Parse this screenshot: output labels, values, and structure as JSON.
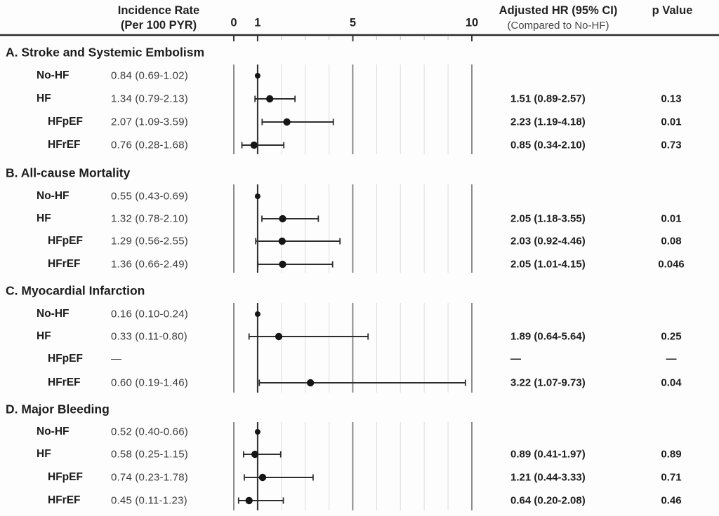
{
  "header": {
    "incidence_label": "Incidence Rate",
    "incidence_sublabel": "(Per 100 PYR)",
    "hr_label": "Adjusted HR (95% CI)",
    "hr_sublabel": "(Compared to No-HF)",
    "pvalue_label": "p Value"
  },
  "colors": {
    "text": "#1d1d1d",
    "muted_text": "#3c3c3c",
    "axis_line": "#2b2b2b",
    "reference_line": "#2f2f2f",
    "major_gridline": "#6f6f6f",
    "minor_gridline": "#e2e2e2",
    "marker": "#161616",
    "background": "#fdfdfd"
  },
  "chart_data": {
    "type": "forest",
    "title": "Forest plot of incidence rates and adjusted hazard ratios by heart failure status",
    "x_axis": {
      "scale": "linear",
      "range": [
        0,
        10.3
      ],
      "label_ticks": [
        0,
        1,
        5,
        10
      ],
      "gridlines": [
        0,
        1,
        2,
        3,
        4,
        5,
        6,
        7,
        8,
        9,
        10
      ],
      "reference_line": 1
    },
    "sections": [
      {
        "title": "A. Stroke and Systemic Embolism",
        "rows": [
          {
            "group": "No-HF",
            "indent": false,
            "incidence": "0.84 (0.69-1.02)",
            "hr": 1.0,
            "ci_low": null,
            "ci_high": null,
            "hr_text": "",
            "p": "",
            "reference": true
          },
          {
            "group": "HF",
            "indent": false,
            "incidence": "1.34 (0.79-2.13)",
            "hr": 1.51,
            "ci_low": 0.89,
            "ci_high": 2.57,
            "hr_text": "1.51 (0.89-2.57)",
            "p": "0.13"
          },
          {
            "group": "HFpEF",
            "indent": true,
            "incidence": "2.07 (1.09-3.59)",
            "hr": 2.23,
            "ci_low": 1.19,
            "ci_high": 4.18,
            "hr_text": "2.23 (1.19-4.18)",
            "p": "0.01"
          },
          {
            "group": "HFrEF",
            "indent": true,
            "incidence": "0.76 (0.28-1.68)",
            "hr": 0.85,
            "ci_low": 0.34,
            "ci_high": 2.1,
            "hr_text": "0.85 (0.34-2.10)",
            "p": "0.73"
          }
        ]
      },
      {
        "title": "B. All-cause Mortality",
        "rows": [
          {
            "group": "No-HF",
            "indent": false,
            "incidence": "0.55 (0.43-0.69)",
            "hr": 1.0,
            "ci_low": null,
            "ci_high": null,
            "hr_text": "",
            "p": "",
            "reference": true
          },
          {
            "group": "HF",
            "indent": false,
            "incidence": "1.32 (0.78-2.10)",
            "hr": 2.05,
            "ci_low": 1.18,
            "ci_high": 3.55,
            "hr_text": "2.05 (1.18-3.55)",
            "p": "0.01"
          },
          {
            "group": "HFpEF",
            "indent": true,
            "incidence": "1.29 (0.56-2.55)",
            "hr": 2.03,
            "ci_low": 0.92,
            "ci_high": 4.46,
            "hr_text": "2.03 (0.92-4.46)",
            "p": "0.08"
          },
          {
            "group": "HFrEF",
            "indent": true,
            "incidence": "1.36 (0.66-2.49)",
            "hr": 2.05,
            "ci_low": 1.01,
            "ci_high": 4.15,
            "hr_text": "2.05 (1.01-4.15)",
            "p": "0.046"
          }
        ]
      },
      {
        "title": "C. Myocardial Infarction",
        "rows": [
          {
            "group": "No-HF",
            "indent": false,
            "incidence": "0.16 (0.10-0.24)",
            "hr": 1.0,
            "ci_low": null,
            "ci_high": null,
            "hr_text": "",
            "p": "",
            "reference": true
          },
          {
            "group": "HF",
            "indent": false,
            "incidence": "0.33 (0.11-0.80)",
            "hr": 1.89,
            "ci_low": 0.64,
            "ci_high": 5.64,
            "hr_text": "1.89 (0.64-5.64)",
            "p": "0.25"
          },
          {
            "group": "HFpEF",
            "indent": true,
            "incidence": "—",
            "hr": null,
            "ci_low": null,
            "ci_high": null,
            "hr_text": "—",
            "p": "—"
          },
          {
            "group": "HFrEF",
            "indent": true,
            "incidence": "0.60 (0.19-1.46)",
            "hr": 3.22,
            "ci_low": 1.07,
            "ci_high": 9.73,
            "hr_text": "3.22 (1.07-9.73)",
            "p": "0.04"
          }
        ]
      },
      {
        "title": "D. Major Bleeding",
        "rows": [
          {
            "group": "No-HF",
            "indent": false,
            "incidence": "0.52 (0.40-0.66)",
            "hr": 1.0,
            "ci_low": null,
            "ci_high": null,
            "hr_text": "",
            "p": "",
            "reference": true
          },
          {
            "group": "HF",
            "indent": false,
            "incidence": "0.58 (0.25-1.15)",
            "hr": 0.89,
            "ci_low": 0.41,
            "ci_high": 1.97,
            "hr_text": "0.89 (0.41-1.97)",
            "p": "0.89"
          },
          {
            "group": "HFpEF",
            "indent": true,
            "incidence": "0.74 (0.23-1.78)",
            "hr": 1.21,
            "ci_low": 0.44,
            "ci_high": 3.33,
            "hr_text": "1.21 (0.44-3.33)",
            "p": "0.71"
          },
          {
            "group": "HFrEF",
            "indent": true,
            "incidence": "0.45 (0.11-1.23)",
            "hr": 0.64,
            "ci_low": 0.2,
            "ci_high": 2.08,
            "hr_text": "0.64 (0.20-2.08)",
            "p": "0.46"
          }
        ]
      }
    ]
  }
}
